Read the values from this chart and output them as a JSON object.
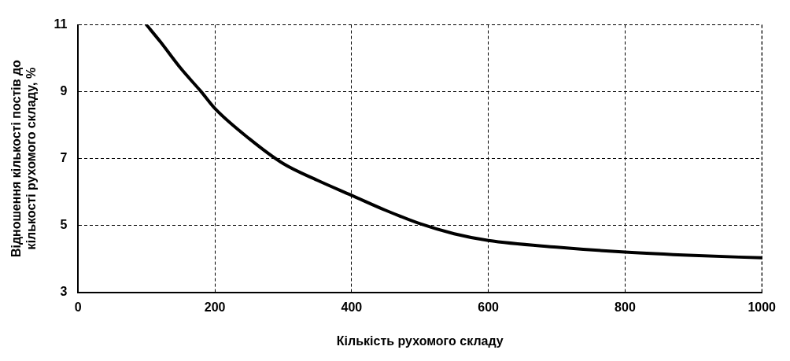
{
  "chart_data": {
    "type": "line",
    "xlabel": "Кількість рухомого складу",
    "ylabel": "Відношення кількості постів до кількості рухомого складу, %",
    "series": [
      {
        "color": "#000000",
        "x": [
          100,
          120,
          150,
          180,
          200,
          250,
          300,
          350,
          400,
          450,
          500,
          550,
          600,
          700,
          800,
          900,
          1000
        ],
        "values": [
          11,
          10.5,
          9.7,
          9,
          8.5,
          7.6,
          6.85,
          6.35,
          5.9,
          5.45,
          5.05,
          4.75,
          4.55,
          4.35,
          4.2,
          4.1,
          4.03
        ]
      }
    ],
    "xlim": [
      0,
      1000
    ],
    "xticks": [
      0,
      200,
      400,
      600,
      800,
      1000
    ],
    "ylim": [
      3,
      11
    ],
    "yticks": [
      3,
      5,
      7,
      9,
      11
    ],
    "grid": true,
    "legend": false,
    "marker": "none",
    "line_style": "solid"
  }
}
